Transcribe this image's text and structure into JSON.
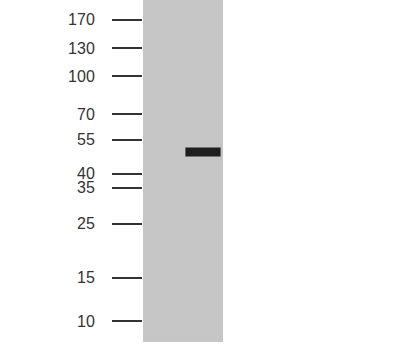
{
  "chart_data": {
    "type": "blot",
    "values": [
      49
    ],
    "ylim": [
      8.2,
      205
    ],
    "yticks": [
      170,
      130,
      100,
      70,
      55,
      40,
      35,
      25,
      15,
      10
    ],
    "log": "y",
    "tick_labels": "y",
    "color": "#1e1e1e"
  }
}
